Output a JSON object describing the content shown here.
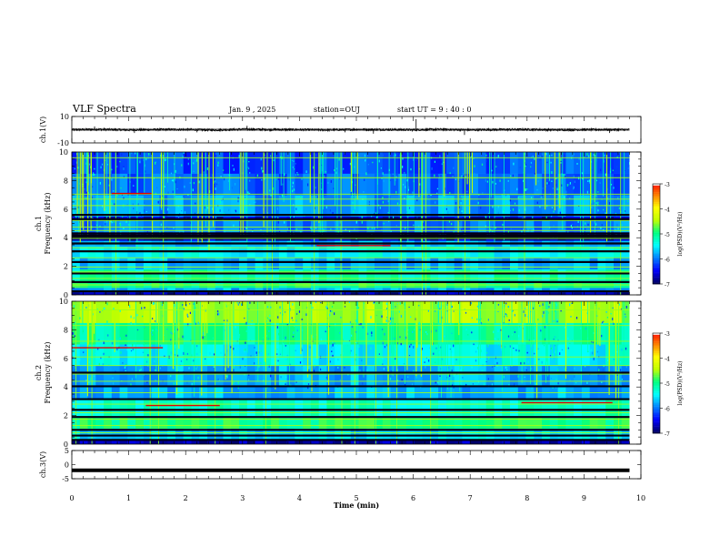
{
  "header": {
    "title": "VLF Spectra",
    "date": "Jan. 9 , 2025",
    "station": "station=OUJ",
    "start": "start UT = 9 : 40 : 0"
  },
  "colors": {
    "background": "#ffffff",
    "trace": "#000000",
    "spectrogram_floor": "#000010",
    "colormap": [
      "#000066",
      "#0000ff",
      "#0080ff",
      "#00ffff",
      "#00ff80",
      "#c0ff00",
      "#ffff00",
      "#ff8000",
      "#ff0000",
      "#ffffff"
    ]
  },
  "chart_data": [
    {
      "type": "line",
      "name": "ch1-waveform",
      "ylabel": "ch.1(V)",
      "ylim": [
        -10,
        10
      ],
      "yticks": [
        10,
        -10
      ],
      "xlim": [
        0,
        10
      ],
      "baseline": 0,
      "series": [
        {
          "x": [
            0,
            0.5,
            1,
            1.5,
            2,
            2.5,
            3,
            3.5,
            4,
            4.5,
            5,
            5.5,
            6,
            6.5,
            7,
            7.5,
            8,
            8.5,
            9,
            9.5,
            9.8
          ],
          "y": [
            0,
            0.3,
            -0.2,
            0.1,
            0.2,
            -0.3,
            0.4,
            0.1,
            0,
            -0.2,
            0.2,
            0.1,
            -0.1,
            0.3,
            -0.2,
            0.1,
            0.2,
            -0.1,
            0,
            0.1,
            0
          ]
        }
      ],
      "spikes": [
        {
          "x": 0.4,
          "y": 2.5
        },
        {
          "x": 1.1,
          "y": -2.5
        },
        {
          "x": 2.2,
          "y": -2
        },
        {
          "x": 3.08,
          "y": 3
        },
        {
          "x": 4.8,
          "y": -2
        },
        {
          "x": 5.3,
          "y": -3
        },
        {
          "x": 6.05,
          "y": 8
        },
        {
          "x": 6.9,
          "y": -4
        },
        {
          "x": 9.45,
          "y": -2.5
        }
      ]
    },
    {
      "type": "heatmap",
      "name": "ch1-spectrogram",
      "ylabel": "ch.1\nFrequency (kHz)",
      "ylim": [
        0,
        10
      ],
      "yticks": [
        0,
        2,
        4,
        6,
        8,
        10
      ],
      "xlim": [
        0,
        10
      ],
      "data_xmax": 9.8,
      "bands": [
        {
          "f0": 0.0,
          "f1": 0.2,
          "level": 0.05
        },
        {
          "f0": 0.2,
          "f1": 0.5,
          "level": 0.3
        },
        {
          "f0": 0.5,
          "f1": 1.0,
          "level": 0.5
        },
        {
          "f0": 1.0,
          "f1": 1.8,
          "level": 0.45
        },
        {
          "f0": 1.8,
          "f1": 2.6,
          "level": 0.3
        },
        {
          "f0": 2.6,
          "f1": 3.4,
          "level": 0.38
        },
        {
          "f0": 3.4,
          "f1": 3.8,
          "level": 0.3
        },
        {
          "f0": 3.8,
          "f1": 4.4,
          "level": 0.05
        },
        {
          "f0": 4.4,
          "f1": 5.2,
          "level": 0.25
        },
        {
          "f0": 5.2,
          "f1": 5.5,
          "level": 0.1
        },
        {
          "f0": 5.5,
          "f1": 7.0,
          "level": 0.28
        },
        {
          "f0": 7.0,
          "f1": 8.5,
          "level": 0.22
        },
        {
          "f0": 8.5,
          "f1": 10.0,
          "level": 0.2
        }
      ],
      "black_lines_khz": [
        0.25,
        0.9,
        1.5,
        2.3,
        3.05,
        3.6,
        4.0,
        4.15,
        4.3,
        5.3,
        5.6
      ],
      "tone_lines_khz": [
        0.7,
        1.15,
        1.6,
        1.95,
        2.6,
        3.3,
        3.95,
        4.5,
        4.75,
        5.2,
        6.25,
        6.7,
        7.05,
        8.2,
        9.6
      ],
      "red_lines": [
        {
          "f": 7.1,
          "x0": 0.7,
          "x1": 1.4
        },
        {
          "f": 3.45,
          "x0": 4.3,
          "x1": 5.6
        }
      ],
      "colorbar": {
        "ticks": [
          "-3",
          "-4",
          "-5",
          "-6",
          "-7"
        ],
        "label": "log(PSD)(V²/Hz)"
      }
    },
    {
      "type": "heatmap",
      "name": "ch2-spectrogram",
      "ylabel": "ch.2\nFrequency (kHz)",
      "ylim": [
        0,
        10
      ],
      "yticks": [
        0,
        2,
        4,
        6,
        8,
        10
      ],
      "xlim": [
        0,
        10
      ],
      "data_xmax": 9.8,
      "bands": [
        {
          "f0": 0.0,
          "f1": 0.3,
          "level": 0.05
        },
        {
          "f0": 0.3,
          "f1": 1.1,
          "level": 0.35
        },
        {
          "f0": 1.1,
          "f1": 2.0,
          "level": 0.5
        },
        {
          "f0": 2.0,
          "f1": 3.2,
          "level": 0.42
        },
        {
          "f0": 3.2,
          "f1": 4.0,
          "level": 0.3
        },
        {
          "f0": 4.0,
          "f1": 5.5,
          "level": 0.3
        },
        {
          "f0": 5.5,
          "f1": 7.0,
          "level": 0.38
        },
        {
          "f0": 7.0,
          "f1": 8.5,
          "level": 0.48
        },
        {
          "f0": 8.5,
          "f1": 10.0,
          "level": 0.62
        }
      ],
      "black_lines_khz": [
        0.3,
        0.6,
        1.0,
        1.9,
        2.4,
        3.15,
        4.05,
        5.0
      ],
      "tone_lines_khz": [
        0.8,
        1.3,
        1.75,
        2.2,
        2.8,
        3.6,
        4.4,
        4.9,
        5.5,
        6.1,
        7.2,
        8.3,
        9.4
      ],
      "red_lines": [
        {
          "f": 6.75,
          "x0": 0.0,
          "x1": 1.6
        },
        {
          "f": 2.7,
          "x0": 1.3,
          "x1": 2.6
        },
        {
          "f": 2.9,
          "x0": 7.9,
          "x1": 9.5
        }
      ],
      "colorbar": {
        "ticks": [
          "-3",
          "-4",
          "-5",
          "-6",
          "-7"
        ],
        "label": "log(PSD)(V²/Hz)"
      }
    },
    {
      "type": "line",
      "name": "ch3-waveform",
      "ylabel": "ch.3(V)",
      "ylim": [
        -5,
        5
      ],
      "yticks": [
        5,
        0,
        -5
      ],
      "xlim": [
        0,
        10
      ],
      "xticks": [
        0,
        1,
        2,
        3,
        4,
        5,
        6,
        7,
        8,
        9,
        10
      ],
      "xlabel": "Time (min)",
      "series": [
        {
          "x": [
            0,
            9.8
          ],
          "y": [
            -2,
            -2
          ]
        }
      ]
    }
  ]
}
